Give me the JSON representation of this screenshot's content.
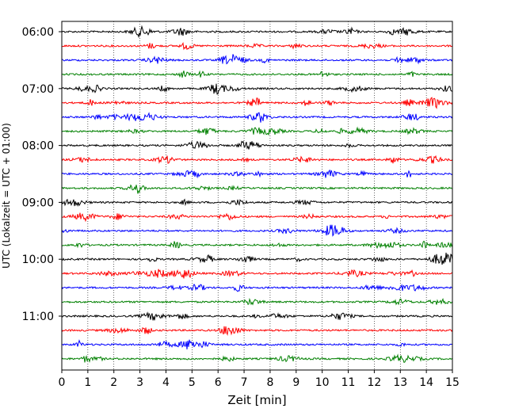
{
  "chart_data": {
    "type": "line",
    "title": "",
    "xlabel": "Zeit  [min]",
    "ylabel": "UTC (Lokalzeit = UTC + 01:00)",
    "xlim": [
      0,
      15
    ],
    "x_ticks": [
      0,
      1,
      2,
      3,
      4,
      5,
      6,
      7,
      8,
      9,
      10,
      11,
      12,
      13,
      14,
      15
    ],
    "x_tick_labels": [
      "0",
      "1",
      "2",
      "3",
      "4",
      "5",
      "6",
      "7",
      "8",
      "9",
      "10",
      "11",
      "12",
      "13",
      "14",
      "15"
    ],
    "y_tick_labels": [
      "06:00",
      "07:00",
      "08:00",
      "09:00",
      "10:00",
      "11:00"
    ],
    "trace_start_times": [
      "06:00",
      "06:15",
      "06:30",
      "06:45",
      "07:00",
      "07:15",
      "07:30",
      "07:45",
      "08:00",
      "08:15",
      "08:30",
      "08:45",
      "09:00",
      "09:15",
      "09:30",
      "09:45",
      "10:00",
      "10:15",
      "10:30",
      "10:45",
      "11:00",
      "11:15",
      "11:30",
      "11:45"
    ],
    "trace_colors": [
      "#000000",
      "#ff0000",
      "#0000ff",
      "#008000"
    ],
    "x_grid": "dotted vertical lines at each minute",
    "legend": "none"
  }
}
